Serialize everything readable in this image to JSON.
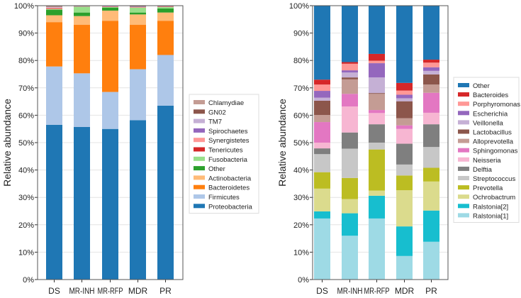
{
  "chart_data": [
    {
      "type": "bar",
      "stacked": true,
      "ylabel": "Relative abundance",
      "ylim": [
        0,
        100
      ],
      "yticks": [
        "0%",
        "10%",
        "20%",
        "30%",
        "40%",
        "50%",
        "60%",
        "70%",
        "80%",
        "90%",
        "100%"
      ],
      "grid": true,
      "legend_placement": "right",
      "categories": [
        "DS",
        "MR-INH",
        "MR-RFP",
        "MDR",
        "PR"
      ],
      "series": [
        {
          "name": "Proteobacteria",
          "color": "#1f77b4",
          "values": [
            56.5,
            55.7,
            55.0,
            58.2,
            63.5
          ]
        },
        {
          "name": "Firmicutes",
          "color": "#aec7e8",
          "values": [
            21.3,
            19.6,
            13.5,
            18.6,
            18.5
          ]
        },
        {
          "name": "Bacteroidetes",
          "color": "#ff7f0e",
          "values": [
            16.2,
            17.7,
            26.0,
            16.2,
            12.5
          ]
        },
        {
          "name": "Actinobacteria",
          "color": "#ffbb78",
          "values": [
            2.5,
            3.2,
            3.7,
            3.8,
            3.0
          ]
        },
        {
          "name": "Other",
          "color": "#2ca02c",
          "values": [
            2.0,
            1.3,
            1.1,
            0.7,
            1.5
          ]
        },
        {
          "name": "Fusobacteria",
          "color": "#98df8a",
          "values": [
            0.3,
            2.1,
            0.2,
            1.8,
            0.5
          ]
        },
        {
          "name": "Tenericutes",
          "color": "#d62728",
          "values": [
            0.2,
            0.05,
            0.1,
            0.1,
            0.1
          ]
        },
        {
          "name": "Synergistetes",
          "color": "#ff9896",
          "values": [
            0.3,
            0.05,
            0.1,
            0.1,
            0.1
          ]
        },
        {
          "name": "Spirochaetes",
          "color": "#9467bd",
          "values": [
            0.1,
            0.05,
            0.1,
            0.1,
            0.05
          ]
        },
        {
          "name": "TM7",
          "color": "#c5b0d5",
          "values": [
            0.1,
            0.05,
            0.1,
            0.1,
            0.05
          ]
        },
        {
          "name": "GN02",
          "color": "#8c564b",
          "values": [
            0.1,
            0.1,
            0.1,
            0.2,
            0.1
          ]
        },
        {
          "name": "Chlamydiae",
          "color": "#c49c94",
          "values": [
            0.4,
            0.1,
            0.1,
            0.1,
            0.1
          ]
        }
      ]
    },
    {
      "type": "bar",
      "stacked": true,
      "ylabel": "Relative abundance",
      "ylim": [
        0,
        100
      ],
      "yticks": [
        "0%",
        "10%",
        "20%",
        "30%",
        "40%",
        "50%",
        "60%",
        "70%",
        "80%",
        "90%",
        "100%"
      ],
      "grid": true,
      "legend_placement": "right",
      "categories": [
        "DS",
        "MR-INH",
        "MR-RFP",
        "MDR",
        "PR"
      ],
      "series": [
        {
          "name": "Ralstonia[1]",
          "color": "#9edae5",
          "values": [
            22.3,
            16.0,
            22.3,
            8.6,
            13.8
          ]
        },
        {
          "name": "Ralstonia[2]",
          "color": "#17becf",
          "values": [
            2.6,
            8.2,
            8.3,
            10.8,
            11.4
          ]
        },
        {
          "name": "Ochrobactrum",
          "color": "#dbdb8d",
          "values": [
            8.3,
            5.2,
            1.9,
            13.2,
            10.6
          ]
        },
        {
          "name": "Prevotella",
          "color": "#bcbd22",
          "values": [
            6.0,
            7.7,
            15.0,
            5.4,
            5.0
          ]
        },
        {
          "name": "Streptococcus",
          "color": "#c7c7c7",
          "values": [
            6.6,
            10.7,
            2.5,
            4.0,
            7.6
          ]
        },
        {
          "name": "Delftia",
          "color": "#7f7f7f",
          "values": [
            2.1,
            5.9,
            6.7,
            7.6,
            8.3
          ]
        },
        {
          "name": "Neisseria",
          "color": "#f7b6d2",
          "values": [
            2.1,
            9.5,
            4.1,
            5.4,
            4.2
          ]
        },
        {
          "name": "Sphingomonas",
          "color": "#e377c2",
          "values": [
            7.5,
            4.6,
            1.1,
            1.3,
            7.3
          ]
        },
        {
          "name": "Alloprevotella",
          "color": "#c49c94",
          "values": [
            2.6,
            5.3,
            5.9,
            2.6,
            3.0
          ]
        },
        {
          "name": "Lactobacillus",
          "color": "#8c564b",
          "values": [
            5.2,
            0.7,
            0.3,
            6.2,
            3.7
          ]
        },
        {
          "name": "Veillonella",
          "color": "#c5b0d5",
          "values": [
            1.1,
            1.8,
            5.7,
            1.1,
            1.3
          ]
        },
        {
          "name": "Escherichia",
          "color": "#9467bd",
          "values": [
            2.5,
            0.8,
            5.2,
            1.3,
            1.3
          ]
        },
        {
          "name": "Porphyromonas",
          "color": "#ff9896",
          "values": [
            2.3,
            2.4,
            0.9,
            1.5,
            1.7
          ]
        },
        {
          "name": "Bacteroides",
          "color": "#d62728",
          "values": [
            1.8,
            0.6,
            2.5,
            2.8,
            1.1
          ]
        },
        {
          "name": "Other",
          "color": "#1f77b4",
          "values": [
            27.0,
            20.6,
            17.6,
            28.2,
            19.7
          ]
        }
      ]
    }
  ]
}
